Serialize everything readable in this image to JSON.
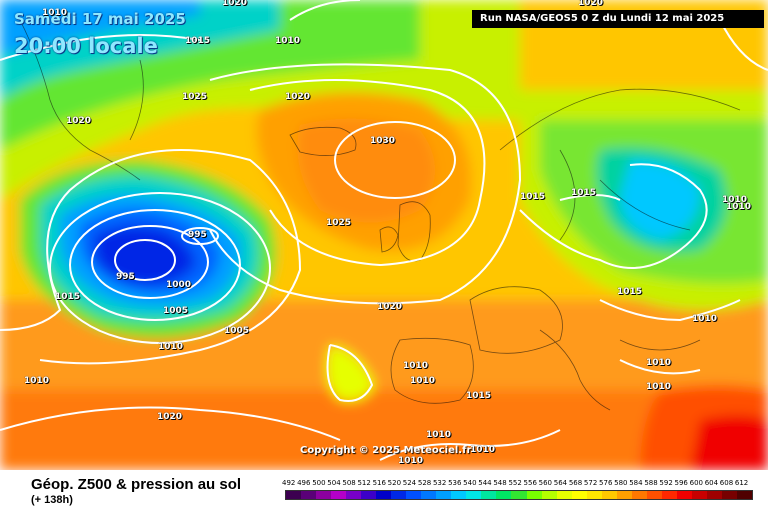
{
  "map": {
    "date_text": "Samedi 17 mai 2025",
    "time_text": "20:00 locale",
    "run_text": "Run NASA/GEOS5 0 Z du Lundi 12 mai 2025",
    "copyright": "Copyright © 2025 Meteociel.fr",
    "isobars": [
      "1010",
      "1015",
      "1010",
      "1025",
      "1020",
      "1020",
      "1030",
      "1025",
      "995",
      "995",
      "1000",
      "1005",
      "1005",
      "1010",
      "1015",
      "1020",
      "1015",
      "1015",
      "1015",
      "1010",
      "1010",
      "1010",
      "1010",
      "1010",
      "1010",
      "1010",
      "1020",
      "1010",
      "1015",
      "1010",
      "1010",
      "1010",
      "1020",
      "1020"
    ],
    "features": {
      "low_center_pressure": "995",
      "high_center_pressure": "1030"
    }
  },
  "footer": {
    "title": "Géop. Z500 & pression au sol",
    "subtitle": "(+ 138h)"
  },
  "legend": {
    "values": [
      "492",
      "496",
      "500",
      "504",
      "508",
      "512",
      "516",
      "520",
      "524",
      "528",
      "532",
      "536",
      "540",
      "544",
      "548",
      "552",
      "556",
      "560",
      "564",
      "568",
      "572",
      "576",
      "580",
      "584",
      "588",
      "592",
      "596",
      "600",
      "604",
      "608",
      "612"
    ],
    "colors": [
      "#3c0050",
      "#5a0078",
      "#8c00a0",
      "#b400c8",
      "#7800c8",
      "#3c00c8",
      "#0000c8",
      "#0028e6",
      "#0050ff",
      "#0078ff",
      "#00a0ff",
      "#00c8ff",
      "#00e6e6",
      "#00e6a0",
      "#00e664",
      "#32e632",
      "#78ff00",
      "#b4ff00",
      "#e6ff00",
      "#ffff00",
      "#ffe600",
      "#ffc800",
      "#ffa000",
      "#ff7800",
      "#ff5000",
      "#ff2800",
      "#f00000",
      "#c80000",
      "#a00000",
      "#780000",
      "#500000"
    ]
  },
  "colors": {
    "ocean_high": "#ff8c1e",
    "trough": "#0040f0",
    "ridge": "#ffd700"
  }
}
